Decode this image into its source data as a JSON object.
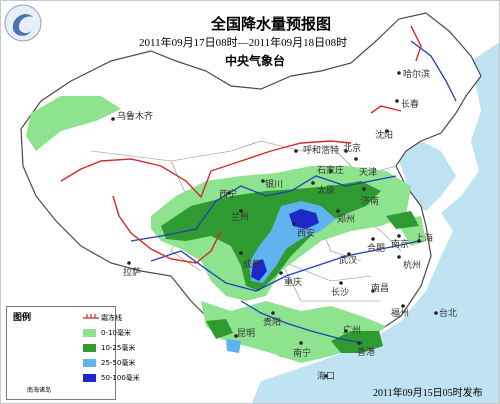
{
  "map": {
    "title": "全国降水量预报图",
    "period": "2011年09月17日08时—2011年09月18日08时",
    "agency": "中央气象台",
    "issue_time": "2011年09月15日05时发布",
    "logo": "cma-logo-icon"
  },
  "cities": {
    "urumqi": "乌鲁木齐",
    "harbin": "哈尔滨",
    "changchun": "长春",
    "shenyang": "沈阳",
    "hohhot": "呼和浩特",
    "beijing": "北京",
    "tianjin": "天津",
    "shijiazhuang": "石家庄",
    "taiyuan": "太原",
    "jinan": "济南",
    "yinchuan": "银川",
    "xining": "西宁",
    "lanzhou": "兰州",
    "xian": "西安",
    "zhengzhou": "郑州",
    "hefei": "合肥",
    "nanjing": "南京",
    "shanghai": "上海",
    "hangzhou": "杭州",
    "wuhan": "武汉",
    "chengdu": "成都",
    "chongqing": "重庆",
    "changsha": "长沙",
    "nanchang": "南昌",
    "fuzhou": "福州",
    "taipei": "台北",
    "guiyang": "贵阳",
    "kunming": "昆明",
    "nanning": "南宁",
    "guangzhou": "广州",
    "hongkong": "香港",
    "haikou": "海口",
    "lhasa": "拉萨"
  },
  "legend": {
    "title": "图例",
    "items": [
      {
        "label": "霜冻线",
        "type": "line",
        "color": "#d42a2a"
      },
      {
        "label": "0-10毫米",
        "type": "fill",
        "color": "#8ee38e"
      },
      {
        "label": "10-25毫米",
        "type": "fill",
        "color": "#2f9a2f"
      },
      {
        "label": "25-50毫米",
        "type": "fill",
        "color": "#5fb4f0"
      },
      {
        "label": "50-100毫米",
        "type": "fill",
        "color": "#1e28c8"
      }
    ]
  },
  "inset": {
    "label": "南海诸岛"
  },
  "colors": {
    "land": "#ffffff",
    "sea": "#bfe3f2",
    "border": "#4a4a4a",
    "river": "#1f3fbf",
    "frost_line": "#d42a2a"
  }
}
